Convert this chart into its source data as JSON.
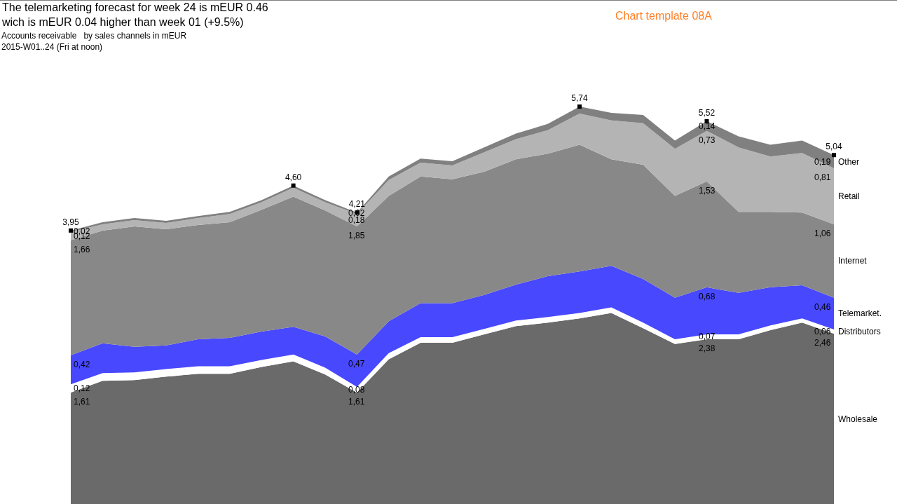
{
  "chart_data": {
    "type": "area",
    "stacked": true,
    "title": "The telemarketing forecast for week 24 is mEUR 0.46\nwich is mEUR 0.04 higher than week 01 (+9.5%)",
    "subtitle": "Accounts receivable   by sales channels in mEUR\n2015-W01..24 (Fri at noon)",
    "annotations": [
      "Chart template 08A"
    ],
    "categories": [
      null,
      null,
      null,
      null,
      null,
      null,
      null,
      null,
      null,
      null,
      null,
      null,
      null,
      null,
      null,
      null,
      null,
      null,
      null,
      null,
      null,
      null,
      null,
      null,
      null
    ],
    "series": [
      {
        "name": "Wholesale",
        "color": "#6a6a6a",
        "values": [
          1.61,
          1.78,
          1.79,
          1.84,
          1.88,
          1.88,
          1.98,
          2.06,
          1.87,
          1.61,
          2.09,
          2.33,
          2.33,
          2.45,
          2.57,
          2.62,
          2.68,
          2.76,
          2.54,
          2.31,
          2.38,
          2.38,
          2.51,
          2.62,
          2.46
        ],
        "value_labels": [
          "1,61",
          null,
          null,
          null,
          null,
          null,
          null,
          null,
          null,
          "1,61",
          null,
          null,
          null,
          null,
          null,
          null,
          null,
          null,
          null,
          null,
          "2,38",
          null,
          null,
          null,
          "2,46"
        ]
      },
      {
        "name": "Distributors",
        "color": "#ffffff",
        "values": [
          0.12,
          0.11,
          0.11,
          0.11,
          0.11,
          0.11,
          0.1,
          0.1,
          0.1,
          0.08,
          0.09,
          0.08,
          0.08,
          0.08,
          0.08,
          0.08,
          0.08,
          0.08,
          0.08,
          0.07,
          0.07,
          0.07,
          0.07,
          0.06,
          0.06
        ],
        "value_labels": [
          "0,12",
          null,
          null,
          null,
          null,
          null,
          null,
          null,
          null,
          "0,08",
          null,
          null,
          null,
          null,
          null,
          null,
          null,
          null,
          null,
          null,
          "0,07",
          null,
          null,
          null,
          "0,06"
        ]
      },
      {
        "name": "Telemarket.",
        "color": "#4848ff",
        "values": [
          0.42,
          0.43,
          0.37,
          0.34,
          0.39,
          0.41,
          0.41,
          0.4,
          0.45,
          0.47,
          0.46,
          0.49,
          0.49,
          0.49,
          0.52,
          0.59,
          0.6,
          0.6,
          0.63,
          0.6,
          0.68,
          0.6,
          0.55,
          0.48,
          0.46
        ],
        "value_labels": [
          "0,42",
          null,
          null,
          null,
          null,
          null,
          null,
          null,
          null,
          "0,47",
          null,
          null,
          null,
          null,
          null,
          null,
          null,
          null,
          null,
          null,
          "0,68",
          null,
          null,
          null,
          "0,46"
        ]
      },
      {
        "name": "Internet",
        "color": "#888888",
        "values": [
          1.66,
          1.63,
          1.74,
          1.68,
          1.65,
          1.67,
          1.76,
          1.88,
          1.82,
          1.85,
          1.81,
          1.83,
          1.79,
          1.78,
          1.81,
          1.77,
          1.83,
          1.54,
          1.65,
          1.47,
          1.53,
          1.17,
          1.09,
          1.05,
          1.06
        ],
        "value_labels": [
          "1,66",
          null,
          null,
          null,
          null,
          null,
          null,
          null,
          null,
          "1,85",
          null,
          null,
          null,
          null,
          null,
          null,
          null,
          null,
          null,
          null,
          "1,53",
          null,
          null,
          null,
          "1,06"
        ]
      },
      {
        "name": "Retail",
        "color": "#b4b4b4",
        "values": [
          0.12,
          0.09,
          0.09,
          0.09,
          0.1,
          0.12,
          0.11,
          0.13,
          0.12,
          0.18,
          0.23,
          0.2,
          0.2,
          0.28,
          0.29,
          0.34,
          0.45,
          0.56,
          0.6,
          0.68,
          0.73,
          0.93,
          0.8,
          0.86,
          0.81
        ],
        "value_labels": [
          "0,12",
          null,
          null,
          null,
          null,
          null,
          null,
          null,
          null,
          "0,18",
          null,
          null,
          null,
          null,
          null,
          null,
          null,
          null,
          null,
          null,
          "0,73",
          null,
          null,
          null,
          "0,81"
        ]
      },
      {
        "name": "Other",
        "color": "#808080",
        "values": [
          0.02,
          0.03,
          0.03,
          0.03,
          0.03,
          0.03,
          0.03,
          0.03,
          0.03,
          0.02,
          0.05,
          0.06,
          0.06,
          0.07,
          0.08,
          0.09,
          0.1,
          0.11,
          0.12,
          0.12,
          0.14,
          0.16,
          0.17,
          0.18,
          0.19
        ],
        "value_labels": [
          "0,02",
          null,
          null,
          null,
          null,
          null,
          null,
          null,
          null,
          "0,02",
          null,
          null,
          null,
          null,
          null,
          null,
          null,
          null,
          null,
          null,
          "0,14",
          null,
          null,
          null,
          "0,19"
        ]
      }
    ],
    "totals": [
      "3,95",
      null,
      null,
      null,
      null,
      null,
      null,
      "4,60",
      null,
      "4,21",
      null,
      null,
      null,
      null,
      null,
      null,
      "5,74",
      null,
      null,
      null,
      "5,52",
      null,
      null,
      null,
      "5,04"
    ],
    "tick_labels": false,
    "grid": false
  }
}
